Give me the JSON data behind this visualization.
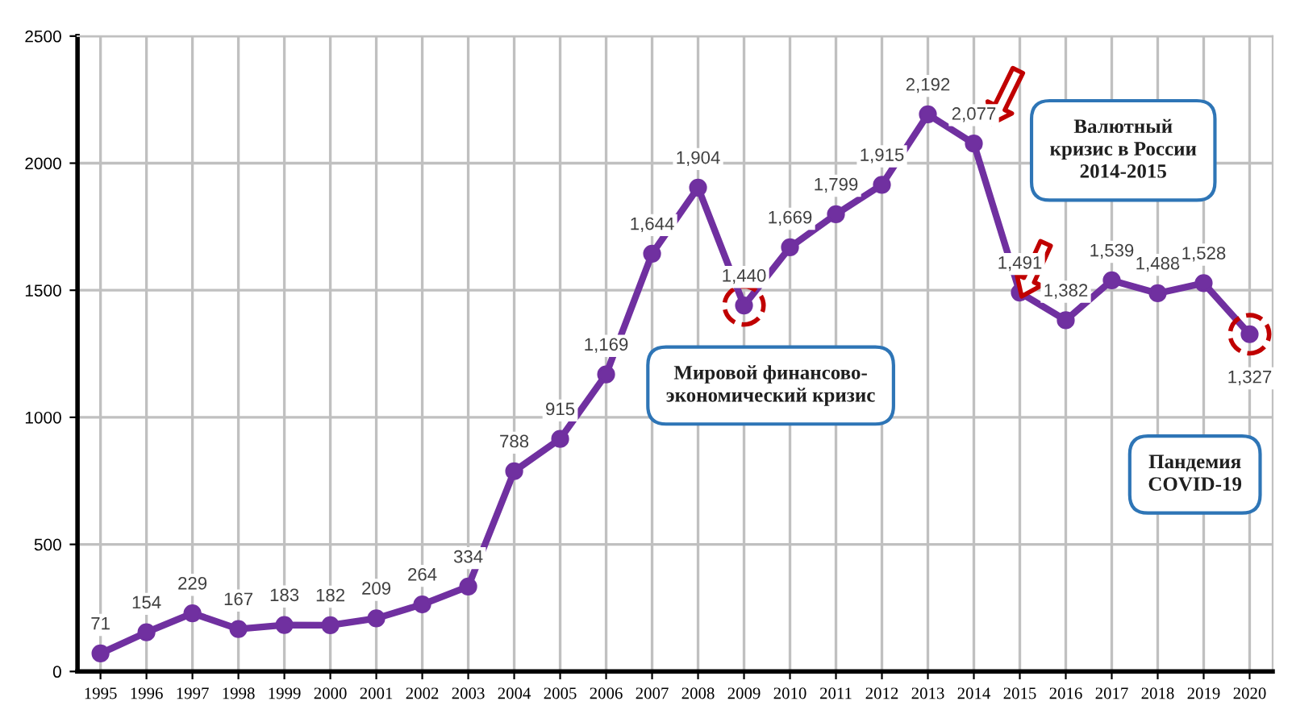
{
  "chart_data": {
    "type": "line",
    "categories": [
      "1995",
      "1996",
      "1997",
      "1998",
      "1999",
      "2000",
      "2001",
      "2002",
      "2003",
      "2004",
      "2005",
      "2006",
      "2007",
      "2008",
      "2009",
      "2010",
      "2011",
      "2012",
      "2013",
      "2014",
      "2015",
      "2016",
      "2017",
      "2018",
      "2019",
      "2020"
    ],
    "series": [
      {
        "color": "#7030a0",
        "values": [
          71,
          154,
          229,
          167,
          183,
          182,
          209,
          264,
          334,
          788,
          915,
          1169,
          1644,
          1904,
          1440,
          1669,
          1799,
          1915,
          2192,
          2077,
          1491,
          1382,
          1539,
          1488,
          1528,
          1327
        ],
        "value_labels": [
          "71",
          "154",
          "229",
          "167",
          "183",
          "182",
          "209",
          "264",
          "334",
          "788",
          "915",
          "1,169",
          "1,644",
          "1,904",
          "1,440",
          "1,669",
          "1,799",
          "1,915",
          "2,192",
          "2,077",
          "1,491",
          "1,382",
          "1,539",
          "1,488",
          "1,528",
          "1,327"
        ]
      }
    ],
    "ylim": [
      0,
      2500
    ],
    "yticks": [
      0,
      500,
      1000,
      1500,
      2000,
      2500
    ],
    "grid": true,
    "marker": "circle",
    "line_style": "solid",
    "legend": false,
    "annotations": [
      "Мировой финансово-\nэкономический кризис",
      "Валютный\nкризис в России\n2014-2015",
      "Пандемия\nCOVID-19"
    ]
  }
}
